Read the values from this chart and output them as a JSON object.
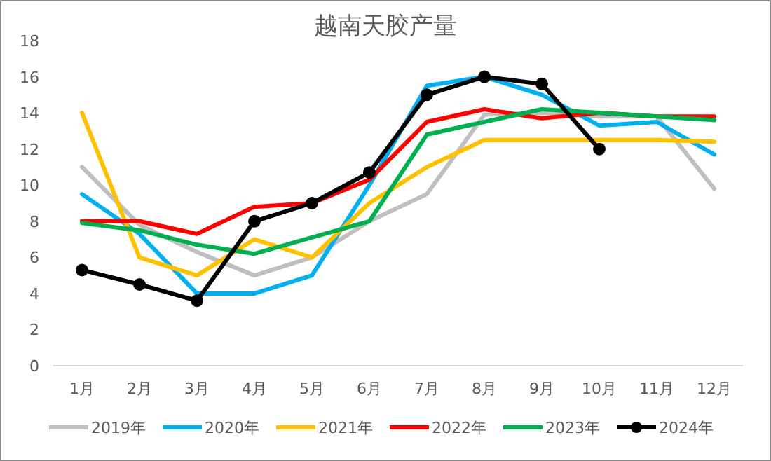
{
  "chart_data": {
    "type": "line",
    "title": "越南天胶产量",
    "categories": [
      "1月",
      "2月",
      "3月",
      "4月",
      "5月",
      "6月",
      "7月",
      "8月",
      "9月",
      "10月",
      "11月",
      "12月"
    ],
    "ylim": [
      0,
      18
    ],
    "yticks": [
      0,
      2,
      4,
      6,
      8,
      10,
      12,
      14,
      16,
      18
    ],
    "grid": false,
    "legend": "bottom",
    "series": [
      {
        "name": "2019年",
        "color": "#bfbfbf",
        "marker": "none",
        "values": [
          11,
          7.8,
          6.3,
          5,
          6,
          8,
          9.5,
          13.9,
          14,
          13.8,
          13.8,
          9.8
        ]
      },
      {
        "name": "2020年",
        "color": "#00b0f0",
        "marker": "none",
        "values": [
          9.5,
          7.3,
          4,
          4,
          5,
          10,
          15.5,
          16,
          15,
          13.3,
          13.5,
          11.7
        ]
      },
      {
        "name": "2021年",
        "color": "#ffc000",
        "marker": "none",
        "values": [
          14,
          6,
          5,
          7,
          6,
          9,
          11,
          12.5,
          12.5,
          12.5,
          12.5,
          12.4
        ]
      },
      {
        "name": "2022年",
        "color": "#ff0000",
        "marker": "none",
        "values": [
          8,
          8,
          7.3,
          8.8,
          9,
          10.3,
          13.5,
          14.2,
          13.7,
          14,
          13.8,
          13.8
        ]
      },
      {
        "name": "2023年",
        "color": "#00b050",
        "marker": "none",
        "values": [
          7.9,
          7.5,
          6.7,
          6.2,
          7.1,
          8,
          12.8,
          13.5,
          14.2,
          14,
          13.8,
          13.6
        ]
      },
      {
        "name": "2024年",
        "color": "#000000",
        "marker": "circle",
        "values": [
          5.3,
          4.5,
          3.6,
          8,
          9,
          10.7,
          15,
          16,
          15.6,
          12,
          null,
          null
        ]
      }
    ]
  }
}
